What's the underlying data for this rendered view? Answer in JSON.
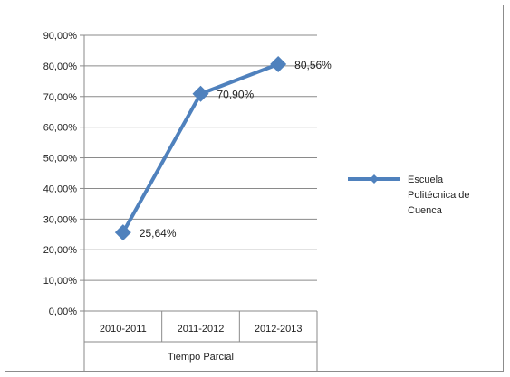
{
  "chart_data": {
    "type": "line",
    "categories": [
      "2010-2011",
      "2011-2012",
      "2012-2013"
    ],
    "category_group_label": "Tiempo Parcial",
    "series": [
      {
        "name": "Escuela Politécnica de Cuenca",
        "values": [
          25.64,
          70.9,
          80.56
        ],
        "data_labels": [
          "25,64%",
          "70,90%",
          "80,56%"
        ],
        "color": "#4f81bd",
        "marker": "diamond"
      }
    ],
    "y_ticks": [
      "0,00%",
      "10,00%",
      "20,00%",
      "30,00%",
      "40,00%",
      "50,00%",
      "60,00%",
      "70,00%",
      "80,00%",
      "90,00%"
    ],
    "ylim": [
      0,
      90
    ],
    "y_major_unit": 10,
    "grid": true,
    "legend_position": "right",
    "legend_lines": [
      "Escuela",
      "Politécnica de",
      "Cuenca"
    ],
    "title": "",
    "xlabel": "",
    "ylabel": ""
  }
}
